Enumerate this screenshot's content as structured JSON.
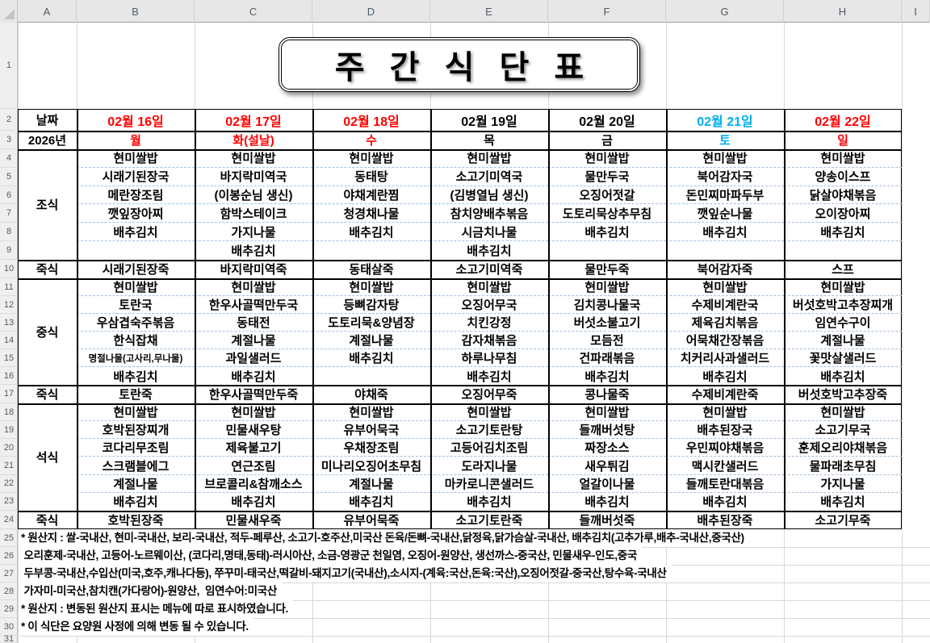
{
  "title": "주 간 식 단 표",
  "spreadsheet": {
    "column_letters": [
      "A",
      "B",
      "C",
      "D",
      "E",
      "F",
      "G",
      "H",
      "I"
    ],
    "row_numbers": [
      1,
      2,
      3,
      4,
      5,
      6,
      7,
      8,
      9,
      10,
      11,
      12,
      13,
      14,
      15,
      16,
      17,
      18,
      19,
      20,
      21,
      22,
      23,
      24,
      25,
      26,
      27,
      28,
      29,
      30,
      31
    ]
  },
  "colors": {
    "red": "#ff0000",
    "black": "#000000",
    "cyan": "#00b0f0"
  },
  "header": {
    "date_label": "날짜",
    "year_label": "2026년"
  },
  "meal_labels": {
    "breakfast": "조식",
    "porridge": "죽식",
    "lunch": "중식",
    "dinner": "석식"
  },
  "days": [
    {
      "date": "02월 16일",
      "day": "월",
      "color": "red",
      "breakfast": [
        "현미쌀밥",
        "시래기된장국",
        "메란장조림",
        "깻잎장아찌",
        "배추김치",
        ""
      ],
      "breakfast_porridge": "시래기된장죽",
      "lunch": [
        "현미쌀밥",
        "토란국",
        "우삼겹숙주볶음",
        "한식잡채",
        "명절나물(고사리,무나물)",
        "배추김치"
      ],
      "lunch_porridge": "토란죽",
      "dinner": [
        "현미쌀밥",
        "호박된장찌개",
        "코다리무조림",
        "스크램블에그",
        "계절나물",
        "배추김치"
      ],
      "dinner_porridge": "호박된장죽"
    },
    {
      "date": "02월 17일",
      "day": "화(설날)",
      "color": "red",
      "breakfast": [
        "현미쌀밥",
        "바지락미역국",
        "(이봉순님 생신)",
        "함박스테이크",
        "가지나물",
        "배추김치"
      ],
      "breakfast_porridge": "바지락미역죽",
      "lunch": [
        "현미쌀밥",
        "한우사골떡만두국",
        "동태전",
        "계절나물",
        "과일샐러드",
        "배추김치"
      ],
      "lunch_porridge": "한우사골떡만두죽",
      "dinner": [
        "현미쌀밥",
        "민물새우탕",
        "제육불고기",
        "연근조림",
        "브로콜리&참깨소스",
        "배추김치"
      ],
      "dinner_porridge": "민물새우죽"
    },
    {
      "date": "02월 18일",
      "day": "수",
      "color": "red",
      "breakfast": [
        "현미쌀밥",
        "동태탕",
        "야채계란찜",
        "청경채나물",
        "배추김치",
        ""
      ],
      "breakfast_porridge": "동태살죽",
      "lunch": [
        "현미쌀밥",
        "등뼈감자탕",
        "도토리묵&양념장",
        "계절나물",
        "배추김치",
        ""
      ],
      "lunch_porridge": "야채죽",
      "dinner": [
        "현미쌀밥",
        "유부어묵국",
        "우채장조림",
        "미나리오징어초무침",
        "계절나물",
        "배추김치"
      ],
      "dinner_porridge": "유부어묵죽"
    },
    {
      "date": "02월 19일",
      "day": "목",
      "color": "black",
      "breakfast": [
        "현미쌀밥",
        "소고기미역국",
        "(김병열님 생신)",
        "참치양배추볶음",
        "시금치나물",
        "배추김치"
      ],
      "breakfast_porridge": "소고기미역죽",
      "lunch": [
        "현미쌀밥",
        "오징어무국",
        "치킨강정",
        "감자채볶음",
        "하루나무침",
        "배추김치"
      ],
      "lunch_porridge": "오징어무죽",
      "dinner": [
        "현미쌀밥",
        "소고기토란탕",
        "고등어김치조림",
        "도라지나물",
        "마카로니콘샐러드",
        "배추김치"
      ],
      "dinner_porridge": "소고기토란죽"
    },
    {
      "date": "02월 20일",
      "day": "금",
      "color": "black",
      "breakfast": [
        "현미쌀밥",
        "물만두국",
        "오징어젓갈",
        "도토리묵상추무침",
        "배추김치",
        ""
      ],
      "breakfast_porridge": "물만두죽",
      "lunch": [
        "현미쌀밥",
        "김치콩나물국",
        "버섯소불고기",
        "모듬전",
        "건파래볶음",
        "배추김치"
      ],
      "lunch_porridge": "콩나물죽",
      "dinner": [
        "현미쌀밥",
        "들깨버섯탕",
        "짜장소스",
        "새우튀김",
        "얼갈이나물",
        "배추김치"
      ],
      "dinner_porridge": "들깨버섯죽"
    },
    {
      "date": "02월 21일",
      "day": "토",
      "color": "cyan",
      "breakfast": [
        "현미쌀밥",
        "북어감자국",
        "돈민찌마파두부",
        "깻잎순나물",
        "배추김치",
        ""
      ],
      "breakfast_porridge": "북어감자죽",
      "lunch": [
        "현미쌀밥",
        "수제비계란국",
        "제육김치볶음",
        "어묵채간장볶음",
        "치커리사과샐러드",
        "배추김치"
      ],
      "lunch_porridge": "수제비계란죽",
      "dinner": [
        "현미쌀밥",
        "배추된장국",
        "우민찌야채볶음",
        "맥시칸샐러드",
        "들깨토란대볶음",
        "배추김치"
      ],
      "dinner_porridge": "배추된장죽"
    },
    {
      "date": "02월 22일",
      "day": "일",
      "color": "red",
      "breakfast": [
        "현미쌀밥",
        "양송이스프",
        "닭살야채볶음",
        "오이장아찌",
        "배추김치",
        ""
      ],
      "breakfast_porridge": "스프",
      "lunch": [
        "현미쌀밥",
        "버섯호박고추장찌개",
        "임연수구이",
        "계절나물",
        "꽃맛살샐러드",
        "배추김치"
      ],
      "lunch_porridge": "버섯호박고추장죽",
      "dinner": [
        "현미쌀밥",
        "소고기무국",
        "훈제오리야채볶음",
        "물파래초무침",
        "가지나물",
        "배추김치"
      ],
      "dinner_porridge": "소고기무죽"
    }
  ],
  "footnotes": [
    "* 원산지 : 쌀-국내산, 현미-국내산, 보리-국내산, 적두-페루산, 소고기-호주산,미국산 돈육/돈뼈-국내산,닭정육,닭가슴살-국내산, 배추김치(고추가루,배추-국내산,중국산)",
    " 오리훈제-국내산, 고등어-노르웨이산, (코다리,명태,동태)-러시아산, 소금-영광군 천일염, 오징어-원양산, 생선까스-중국산, 민물새우-인도,중국",
    " 두부콩-국내산,수입산(미국,호주,캐나다등), 쭈꾸미-태국산,떡갈비-돼지고기(국내산),소시지-(계육:국산,돈육:국산),오징어젓갈-중국산,탕수육-국내산",
    " 가자미-미국산,참치캔(가다랑어)-원양산,  임연수어:미국산",
    "* 원산지 : 변동된 원산지 표시는 메뉴에 따로 표시하였습니다.",
    "* 이 식단은 요양원 사정에 의해 변동 될 수 있습니다."
  ]
}
